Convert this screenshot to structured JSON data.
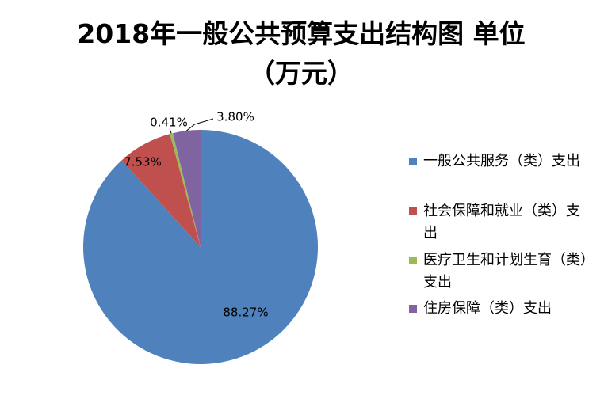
{
  "chart_data": {
    "type": "pie",
    "title": "2018年一般公共预算支出结构图 单位（万元）",
    "categories": [
      "一般公共服务（类）支出",
      "社会保障和就业（类）支出",
      "医疗卫生和计划生育（类）支出",
      "住房保障（类）支出"
    ],
    "values": [
      88.27,
      7.53,
      0.41,
      3.8
    ],
    "value_labels": [
      "88.27%",
      "7.53%",
      "0.41%",
      "3.80%"
    ],
    "colors": [
      "#4f81bd",
      "#c0504d",
      "#9bbb59",
      "#8064a2"
    ],
    "legend": "right"
  }
}
